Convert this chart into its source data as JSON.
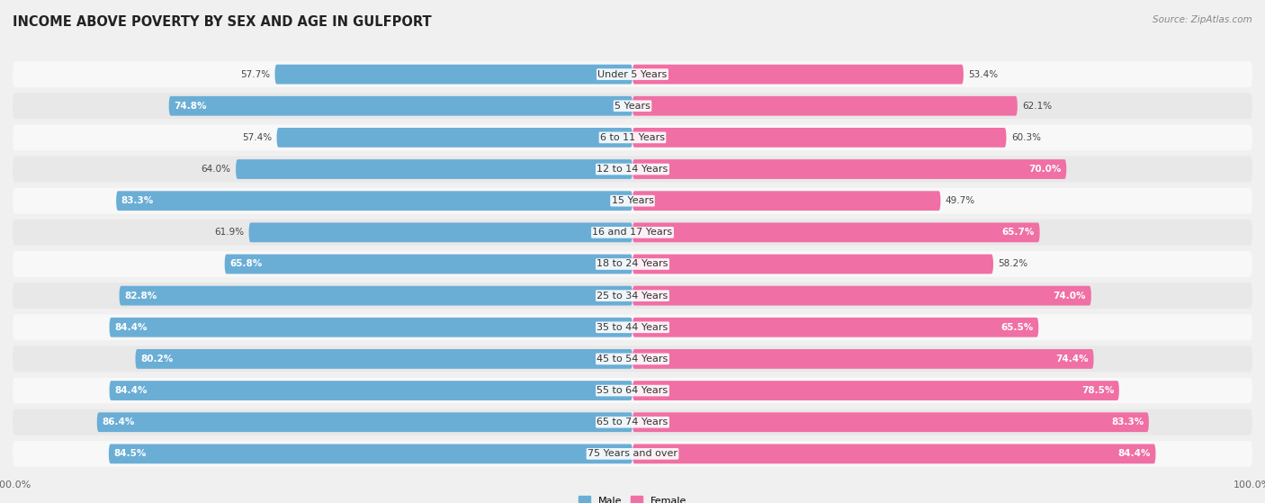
{
  "title": "INCOME ABOVE POVERTY BY SEX AND AGE IN GULFPORT",
  "source": "Source: ZipAtlas.com",
  "categories": [
    "Under 5 Years",
    "5 Years",
    "6 to 11 Years",
    "12 to 14 Years",
    "15 Years",
    "16 and 17 Years",
    "18 to 24 Years",
    "25 to 34 Years",
    "35 to 44 Years",
    "45 to 54 Years",
    "55 to 64 Years",
    "65 to 74 Years",
    "75 Years and over"
  ],
  "male_values": [
    57.7,
    74.8,
    57.4,
    64.0,
    83.3,
    61.9,
    65.8,
    82.8,
    84.4,
    80.2,
    84.4,
    86.4,
    84.5
  ],
  "female_values": [
    53.4,
    62.1,
    60.3,
    70.0,
    49.7,
    65.7,
    58.2,
    74.0,
    65.5,
    74.4,
    78.5,
    83.3,
    84.4
  ],
  "male_color": "#6aaed6",
  "female_color": "#f06fa4",
  "male_color_light": "#aad0e8",
  "female_color_light": "#f7b8d2",
  "male_label": "Male",
  "female_label": "Female",
  "bar_height": 0.62,
  "bg_color": "#f0f0f0",
  "row_bg_odd": "#e8e8e8",
  "row_bg_even": "#f8f8f8",
  "title_fontsize": 10.5,
  "source_fontsize": 7.5,
  "label_fontsize": 8.0,
  "value_fontsize": 7.5,
  "axis_max": 100.0,
  "inside_threshold": 65
}
